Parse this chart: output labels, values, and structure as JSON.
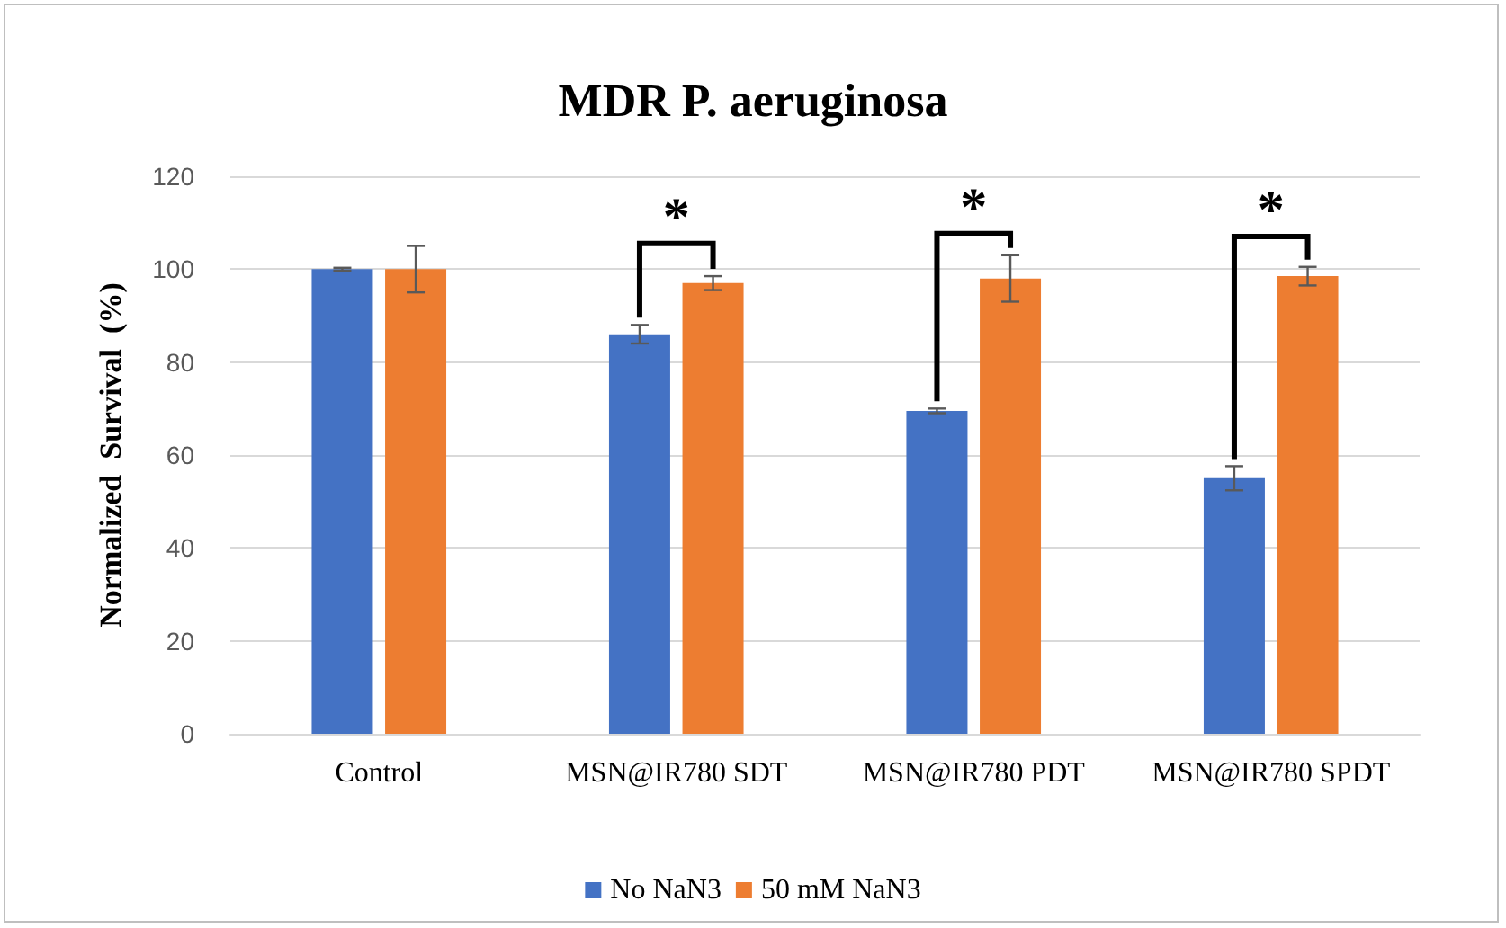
{
  "chart_data": {
    "type": "bar",
    "title": "MDR P. aeruginosa",
    "ylabel": "Normalized  Survival  (%)",
    "categories": [
      "Control",
      "MSN@IR780 SDT",
      "MSN@IR780 PDT",
      "MSN@IR780 SPDT"
    ],
    "series": [
      {
        "name": "No NaN3",
        "color": "#4472c4",
        "values": [
          100,
          86,
          69.5,
          55
        ],
        "errors": [
          0.3,
          2,
          0.5,
          2.6
        ]
      },
      {
        "name": "50 mM NaN3",
        "color": "#ed7d31",
        "values": [
          100,
          97,
          98,
          98.5
        ],
        "errors": [
          5,
          1.5,
          5,
          2
        ]
      }
    ],
    "annotations": [
      {
        "text": "*",
        "x": "MSN@IR780 SDT",
        "y": 97
      },
      {
        "text": "*",
        "x": "MSN@IR780 PDT",
        "y": 98
      },
      {
        "text": "*",
        "x": "MSN@IR780 SPDT",
        "y": 98.5
      }
    ],
    "ylim": [
      0,
      120
    ],
    "yticks": [
      0,
      20,
      40,
      60,
      80,
      100,
      120
    ],
    "grid": "y",
    "legend": "bottom"
  }
}
